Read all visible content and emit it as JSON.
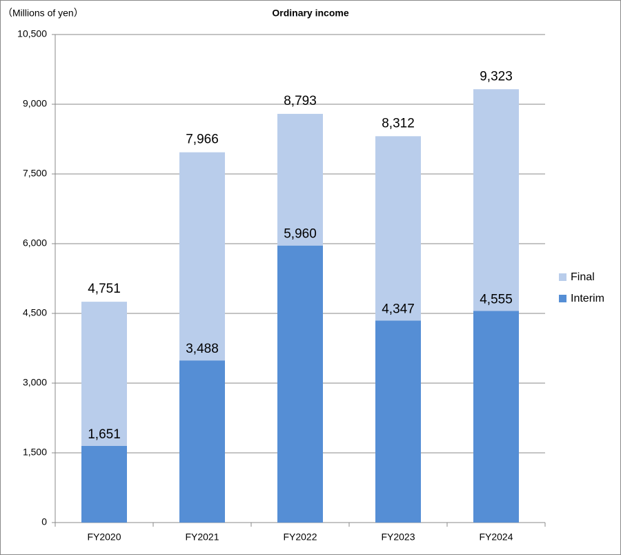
{
  "chart_data": {
    "type": "stacked_bar",
    "title": "Ordinary income",
    "y_label": "（Millions of yen）",
    "categories": [
      "FY2020",
      "FY2021",
      "FY2022",
      "FY2023",
      "FY2024"
    ],
    "series": [
      {
        "name": "Interim",
        "color": "#558ed5",
        "values": [
          1651,
          3488,
          5960,
          4347,
          4555
        ],
        "value_labels": [
          "1,651",
          "3,488",
          "5,960",
          "4,347",
          "4,555"
        ]
      },
      {
        "name": "Final",
        "color": "#b9cdeb",
        "values": [
          3100,
          4478,
          2833,
          3965,
          4768
        ]
      }
    ],
    "totals": {
      "values": [
        4751,
        7966,
        8793,
        8312,
        9323
      ],
      "value_labels": [
        "4,751",
        "7,966",
        "8,793",
        "8,312",
        "9,323"
      ]
    },
    "ylim": [
      0,
      10500
    ],
    "yticks": [
      0,
      {
        "value": 1500,
        "label": "1,500"
      },
      {
        "value": 3000,
        "label": "3,000"
      },
      {
        "value": 4500,
        "label": "4,500"
      },
      {
        "value": 6000,
        "label": "6,000"
      },
      {
        "value": 7500,
        "label": "7,500"
      },
      {
        "value": 9000,
        "label": "9,000"
      },
      {
        "value": 10500,
        "label": "10,500"
      }
    ],
    "grid": true,
    "legend": "right"
  }
}
